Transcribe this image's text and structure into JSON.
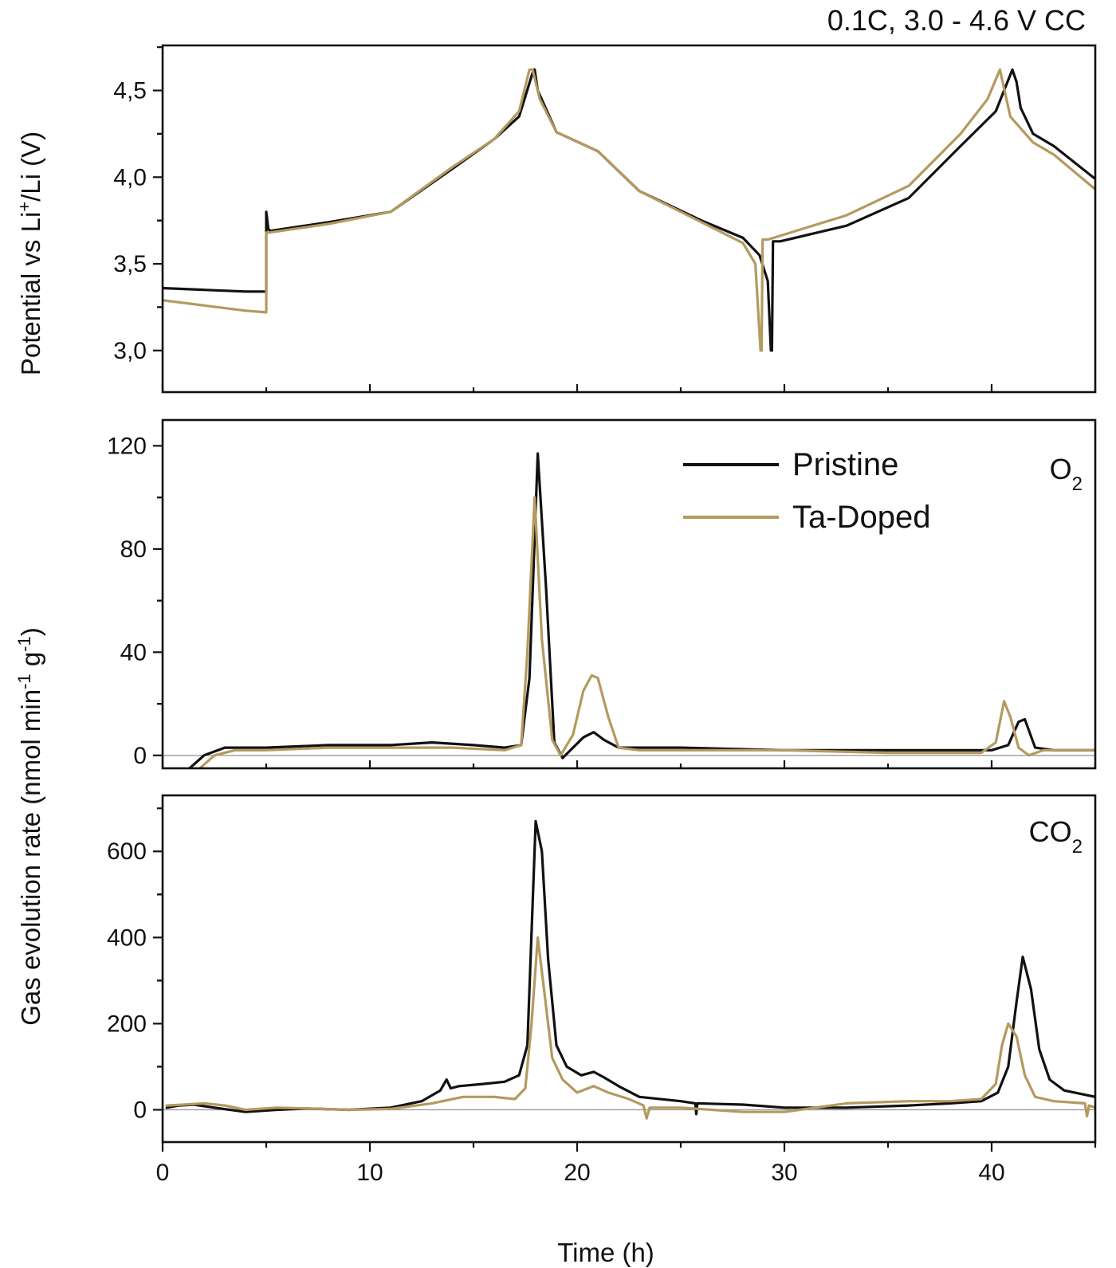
{
  "figure": {
    "condition_label": "0.1C, 3.0 - 4.6 V CC",
    "shared_xlabel": "Time (h)"
  },
  "colors": {
    "Pristine": "#111111",
    "Ta-Doped": "#b39a5f"
  },
  "chart_data": [
    {
      "type": "line",
      "panel": "potential",
      "ylabel_parts": [
        "Potential vs Li",
        "+",
        "/Li (V)"
      ],
      "xlim": [
        0,
        45
      ],
      "ylim": [
        2.76,
        4.76
      ],
      "yticks": [
        "3,0",
        "3,5",
        "4,0",
        "4,5"
      ],
      "ytick_values": [
        3.0,
        3.5,
        4.0,
        4.5
      ],
      "series": [
        {
          "name": "Pristine",
          "x": [
            0,
            2,
            4,
            5.0,
            5.0,
            5.1,
            5.2,
            8,
            11,
            14,
            16,
            17.2,
            17.9,
            17.95,
            18.1,
            19,
            21,
            23,
            26,
            28,
            28.8,
            29.2,
            29.35,
            29.4,
            29.45,
            29.8,
            33,
            36,
            38.5,
            40.2,
            41,
            41.2,
            41.4,
            42,
            43,
            45
          ],
          "y": [
            3.36,
            3.35,
            3.34,
            3.34,
            3.8,
            3.7,
            3.69,
            3.74,
            3.8,
            4.05,
            4.22,
            4.35,
            4.62,
            4.62,
            4.5,
            4.26,
            4.15,
            3.92,
            3.75,
            3.65,
            3.55,
            3.4,
            3.0,
            3.0,
            3.63,
            3.63,
            3.72,
            3.88,
            4.18,
            4.38,
            4.62,
            4.55,
            4.4,
            4.25,
            4.18,
            3.99
          ]
        },
        {
          "name": "Ta-Doped",
          "x": [
            0,
            2,
            4,
            5.0,
            5.0,
            5.1,
            8,
            11,
            14,
            16,
            17.2,
            17.7,
            17.85,
            18.2,
            19,
            21,
            23,
            26,
            28,
            28.6,
            28.85,
            28.9,
            28.95,
            29.2,
            33,
            36,
            38.5,
            39.8,
            40.4,
            40.9,
            42,
            43,
            45
          ],
          "y": [
            3.29,
            3.26,
            3.23,
            3.22,
            3.68,
            3.68,
            3.73,
            3.8,
            4.06,
            4.22,
            4.38,
            4.62,
            4.62,
            4.45,
            4.26,
            4.15,
            3.92,
            3.74,
            3.62,
            3.5,
            3.0,
            3.0,
            3.64,
            3.64,
            3.78,
            3.95,
            4.25,
            4.45,
            4.62,
            4.35,
            4.2,
            4.13,
            3.93
          ]
        }
      ]
    },
    {
      "type": "line",
      "panel": "O2",
      "gas_label": {
        "main": "O",
        "sub": "2"
      },
      "xlim": [
        0,
        45
      ],
      "ylim": [
        -5,
        130
      ],
      "yticks": [
        "0",
        "40",
        "80",
        "120"
      ],
      "ytick_values": [
        0,
        40,
        80,
        120
      ],
      "legend_position": "top-right",
      "legend": [
        "Pristine",
        "Ta-Doped"
      ],
      "series": [
        {
          "name": "Pristine",
          "x": [
            1.3,
            2,
            3,
            5,
            8,
            11,
            13,
            15,
            16.5,
            17.3,
            17.7,
            18.1,
            18.5,
            18.9,
            19.3,
            19.8,
            20.3,
            20.8,
            21.3,
            22,
            25,
            30,
            35,
            40,
            40.8,
            41.3,
            41.6,
            42.1,
            43,
            45
          ],
          "y": [
            -5,
            0,
            3,
            3,
            4,
            4,
            5,
            4,
            3,
            4,
            30,
            117,
            65,
            5,
            -1,
            3,
            7,
            9,
            6,
            3,
            3,
            2,
            2,
            2,
            4,
            13,
            14,
            3,
            2,
            2
          ]
        },
        {
          "name": "Ta-Doped",
          "x": [
            1.8,
            2.5,
            3.5,
            5,
            8,
            11,
            14,
            16.5,
            17.3,
            17.6,
            17.95,
            18.3,
            18.8,
            19.2,
            19.8,
            20.3,
            20.7,
            21,
            21.5,
            22,
            23,
            25,
            30,
            35,
            39.5,
            40.2,
            40.6,
            40.9,
            41.3,
            41.8,
            42.5,
            45
          ],
          "y": [
            -5,
            0,
            2,
            2,
            3,
            3,
            3,
            2,
            4,
            40,
            100,
            45,
            6,
            0,
            8,
            25,
            31,
            30,
            15,
            3,
            2,
            2,
            2,
            1,
            1,
            5,
            21,
            15,
            3,
            0,
            2,
            2
          ]
        }
      ]
    },
    {
      "type": "line",
      "panel": "CO2",
      "gas_label": {
        "main": "CO",
        "sub": "2"
      },
      "xlim": [
        0,
        45
      ],
      "ylim": [
        -75,
        730
      ],
      "yticks": [
        "0",
        "200",
        "400",
        "600"
      ],
      "ytick_values": [
        0,
        200,
        400,
        600
      ],
      "series": [
        {
          "name": "Pristine",
          "x": [
            0.2,
            0.8,
            1.5,
            2.5,
            4,
            5.5,
            7,
            9,
            11,
            12.5,
            13.4,
            13.7,
            13.9,
            14.3,
            15.5,
            16.5,
            17.2,
            17.6,
            18.0,
            18.3,
            18.6,
            19.0,
            19.5,
            20.2,
            20.8,
            21.3,
            22,
            23,
            25,
            25.7,
            25.75,
            25.8,
            28,
            30,
            33,
            36,
            38,
            39.5,
            40.3,
            40.8,
            41.2,
            41.5,
            41.9,
            42.3,
            42.8,
            43.5,
            45
          ],
          "y": [
            5,
            10,
            12,
            5,
            -5,
            0,
            3,
            0,
            5,
            20,
            45,
            70,
            50,
            55,
            60,
            65,
            80,
            150,
            670,
            600,
            350,
            150,
            100,
            80,
            88,
            75,
            55,
            30,
            20,
            15,
            -10,
            15,
            12,
            5,
            5,
            10,
            15,
            20,
            40,
            100,
            250,
            355,
            280,
            140,
            70,
            45,
            30
          ]
        },
        {
          "name": "Ta-Doped",
          "x": [
            0.2,
            1,
            2,
            3,
            4,
            5.5,
            7,
            9,
            11,
            13,
            14.5,
            16,
            17,
            17.5,
            17.8,
            18.1,
            18.4,
            18.8,
            19.3,
            20,
            20.8,
            21.5,
            22.5,
            23.2,
            23.35,
            23.5,
            25,
            28,
            30,
            33,
            36,
            38,
            39.5,
            40.2,
            40.5,
            40.8,
            41.2,
            41.6,
            42.1,
            43,
            44.5,
            44.6,
            44.7,
            45
          ],
          "y": [
            10,
            12,
            15,
            10,
            0,
            5,
            3,
            0,
            2,
            15,
            30,
            30,
            25,
            50,
            200,
            400,
            280,
            120,
            70,
            40,
            55,
            40,
            25,
            10,
            -20,
            5,
            5,
            -5,
            -5,
            15,
            20,
            20,
            25,
            60,
            150,
            200,
            170,
            80,
            30,
            20,
            15,
            -15,
            10,
            5
          ]
        }
      ]
    }
  ]
}
